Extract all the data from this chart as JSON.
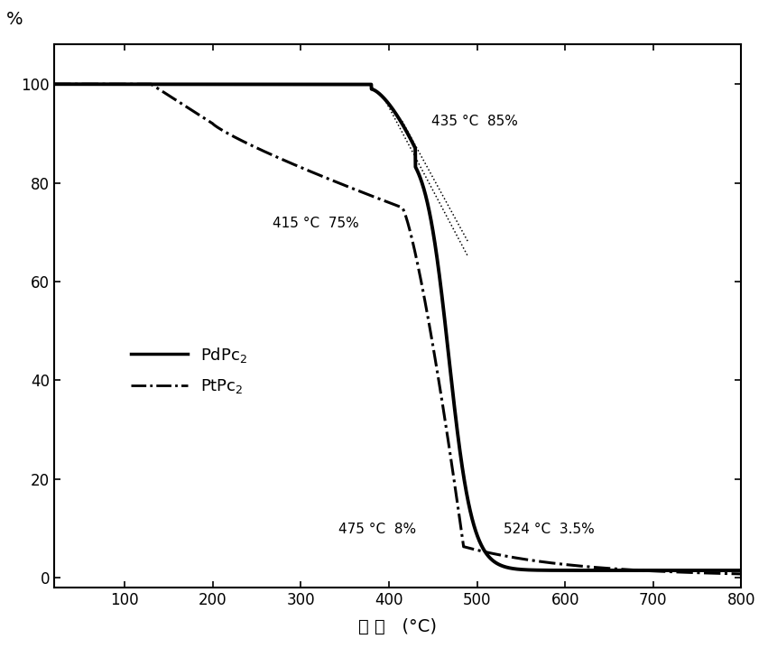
{
  "ylabel": "%",
  "xlabel": "温 度   (°C)",
  "xlim": [
    20,
    800
  ],
  "ylim": [
    -2,
    108
  ],
  "xticks": [
    100,
    200,
    300,
    400,
    500,
    600,
    700,
    800
  ],
  "yticks": [
    0,
    20,
    40,
    60,
    80,
    100
  ],
  "background_color": "#ffffff",
  "line_color": "#000000",
  "ann_435": "435 °C  85%",
  "ann_415": "415 °C  75%",
  "ann_475": "475 °C  8%",
  "ann_524": "524 °C  3.5%",
  "legend_labels": [
    "PdPc$_2$",
    "PtPc$_2$"
  ]
}
